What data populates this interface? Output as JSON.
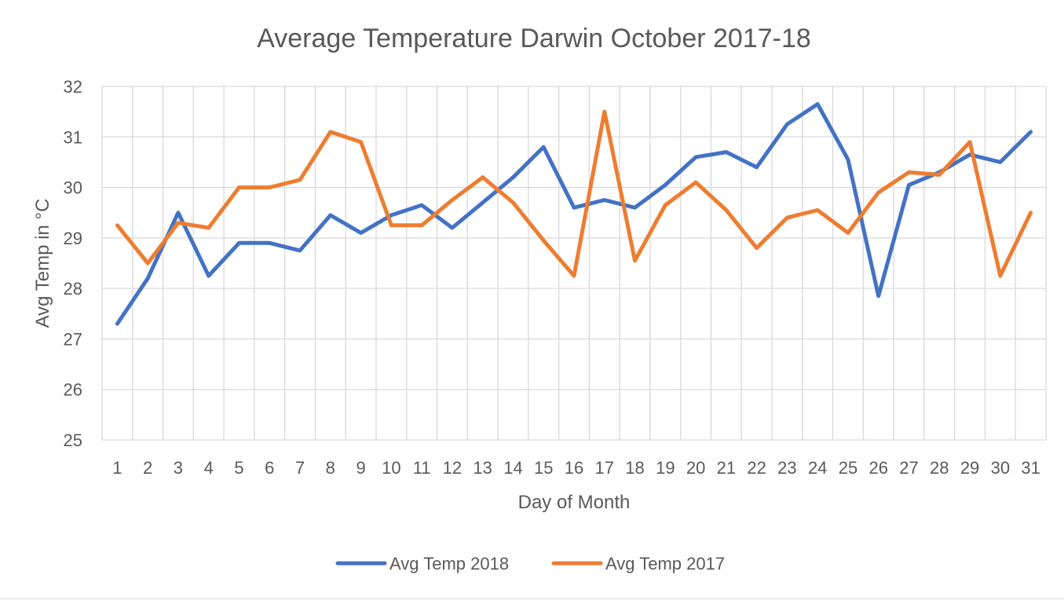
{
  "chart_data": {
    "type": "line",
    "title": "Average Temperature Darwin October 2017-18",
    "xlabel": "Day of Month",
    "ylabel": "Avg Temp in °C",
    "ylim": [
      25,
      32
    ],
    "y_ticks": [
      25,
      26,
      27,
      28,
      29,
      30,
      31,
      32
    ],
    "grid": true,
    "legend_position": "bottom",
    "categories": [
      1,
      2,
      3,
      4,
      5,
      6,
      7,
      8,
      9,
      10,
      11,
      12,
      13,
      14,
      15,
      16,
      17,
      18,
      19,
      20,
      21,
      22,
      23,
      24,
      25,
      26,
      27,
      28,
      29,
      30,
      31
    ],
    "series": [
      {
        "name": "Avg Temp 2018",
        "color": "#4472c4",
        "values": [
          27.3,
          28.2,
          29.5,
          28.25,
          28.9,
          28.9,
          28.75,
          29.45,
          29.1,
          29.45,
          29.65,
          29.2,
          29.7,
          30.2,
          30.8,
          29.6,
          29.75,
          29.6,
          30.05,
          30.6,
          30.7,
          30.4,
          31.25,
          31.65,
          30.55,
          27.85,
          30.05,
          30.3,
          30.65,
          30.5,
          31.1
        ]
      },
      {
        "name": "Avg Temp 2017",
        "color": "#ed7d31",
        "values": [
          29.25,
          28.5,
          29.3,
          29.2,
          30.0,
          30.0,
          30.15,
          31.1,
          30.9,
          29.25,
          29.25,
          29.75,
          30.2,
          29.7,
          28.95,
          28.25,
          31.5,
          28.55,
          29.65,
          30.1,
          29.55,
          28.8,
          29.4,
          29.55,
          29.1,
          29.9,
          30.3,
          30.25,
          30.9,
          28.25,
          29.5
        ]
      }
    ]
  }
}
